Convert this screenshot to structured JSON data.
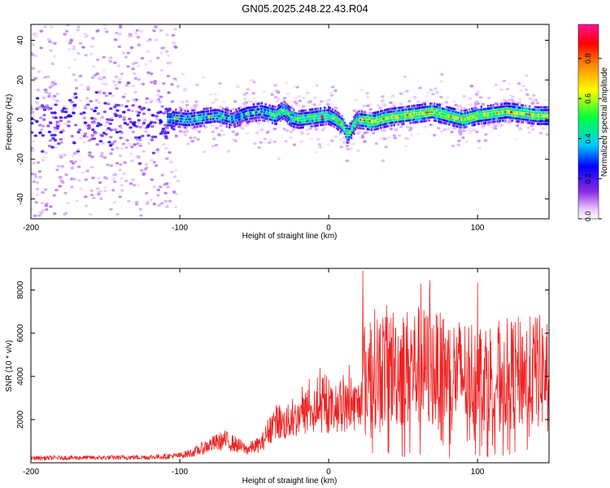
{
  "title": "GN05.2025.248.22.43.R04",
  "chart_data": [
    {
      "type": "heatmap",
      "xlabel": "Height of straight line (km)",
      "ylabel": "Frequency (Hz)",
      "xlim": [
        -200,
        148
      ],
      "ylim": [
        -50,
        48
      ],
      "x_ticks": [
        -200,
        -100,
        0,
        100
      ],
      "y_ticks": [
        -40,
        -20,
        0,
        20,
        40
      ],
      "colorbar": {
        "label": "Normalized spectral amplitude",
        "range": [
          0,
          0.97
        ],
        "ticks": [
          0.0,
          0.2,
          0.4,
          0.6,
          0.8
        ],
        "tick_labels": [
          "0.0",
          "0.2",
          "0.4",
          "0.6",
          "0.8"
        ]
      },
      "ridge": {
        "x": [
          -105,
          -95,
          -85,
          -75,
          -65,
          -55,
          -45,
          -35,
          -30,
          -25,
          -20,
          -10,
          0,
          5,
          10,
          13,
          16,
          20,
          30,
          40,
          50,
          60,
          70,
          80,
          90,
          100,
          110,
          120,
          130,
          140,
          148
        ],
        "y": [
          1,
          0,
          1,
          2,
          0,
          3,
          4,
          2,
          5,
          1,
          0,
          1,
          2,
          0,
          -3,
          -8,
          -4,
          0,
          -1,
          1,
          2,
          3,
          4,
          2,
          0,
          2,
          3,
          4,
          3,
          2,
          2
        ]
      },
      "grid": false
    },
    {
      "type": "line",
      "xlabel": "Height of straight line (km)",
      "ylabel": "SNR (10 * v/v)",
      "xlim": [
        -200,
        148
      ],
      "ylim": [
        0,
        9000
      ],
      "x_ticks": [
        -200,
        -100,
        0,
        100
      ],
      "y_ticks": [
        2000,
        4000,
        6000,
        8000
      ],
      "color": "#ee2222",
      "envelope": {
        "x": [
          -200,
          -150,
          -120,
          -100,
          -90,
          -80,
          -70,
          -60,
          -55,
          -45,
          -40,
          -35,
          -30,
          -25,
          -15,
          -10,
          0,
          10,
          18,
          21,
          23,
          24,
          30,
          40,
          50,
          60,
          70,
          80,
          90,
          100,
          110,
          120,
          130,
          140,
          148
        ],
        "y": [
          220,
          240,
          260,
          330,
          500,
          820,
          1050,
          780,
          620,
          880,
          1550,
          1900,
          1800,
          1950,
          2250,
          2350,
          2450,
          2550,
          2650,
          2700,
          4300,
          4200,
          4500,
          4600,
          4500,
          4600,
          4400,
          4300,
          4200,
          4250,
          4100,
          4200,
          4250,
          4300,
          4300
        ]
      },
      "peaks": {
        "x": [
          23,
          62,
          68,
          100,
          140
        ],
        "y": [
          8900,
          8300,
          8450,
          8350,
          6700
        ]
      },
      "grid": false
    }
  ]
}
